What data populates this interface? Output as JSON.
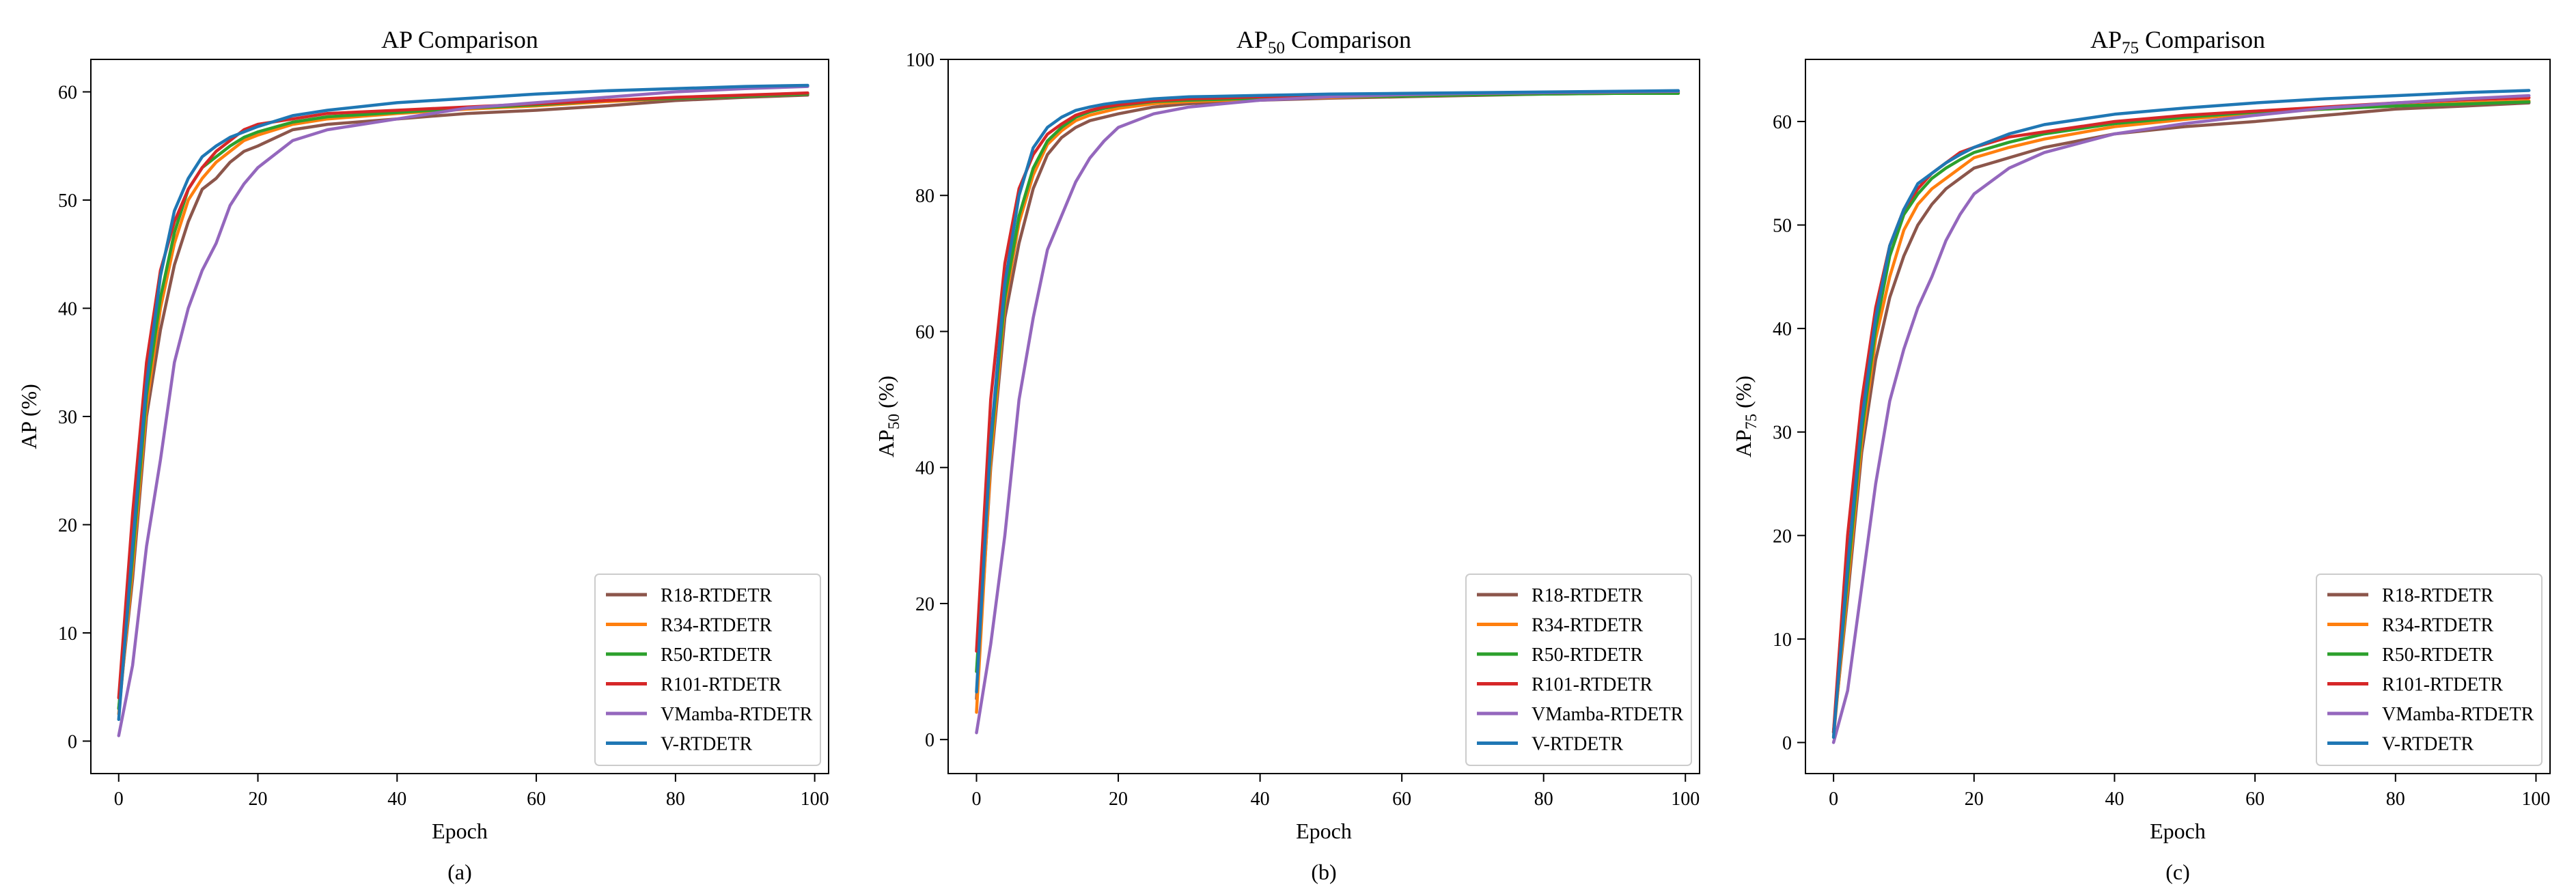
{
  "figure": {
    "panel_labels": [
      "(a)",
      "(b)",
      "(c)"
    ]
  },
  "legend_entries": [
    {
      "name": "R18-RTDETR",
      "color": "#8c564b"
    },
    {
      "name": "R34-RTDETR",
      "color": "#ff7f0e"
    },
    {
      "name": "R50-RTDETR",
      "color": "#2ca02c"
    },
    {
      "name": "R101-RTDETR",
      "color": "#d62728"
    },
    {
      "name": "VMamba-RTDETR",
      "color": "#9467bd"
    },
    {
      "name": "V-RTDETR",
      "color": "#1f77b4"
    }
  ],
  "chart_data": [
    {
      "type": "line",
      "title": "AP Comparison",
      "xlabel": "Epoch",
      "ylabel": "AP (%)",
      "xlim": [
        -4,
        102
      ],
      "ylim": [
        -3,
        63
      ],
      "xticks": [
        0,
        20,
        40,
        60,
        80,
        100
      ],
      "yticks": [
        0,
        10,
        20,
        30,
        40,
        50,
        60
      ],
      "grid": false,
      "legend_position": "lower-right",
      "x": [
        0,
        2,
        4,
        6,
        8,
        10,
        12,
        14,
        16,
        18,
        20,
        25,
        30,
        40,
        50,
        60,
        70,
        80,
        90,
        99
      ],
      "series": [
        {
          "name": "R18-RTDETR",
          "color": "#8c564b",
          "values": [
            3,
            15,
            30,
            38,
            44,
            48,
            51,
            52,
            53.5,
            54.5,
            55,
            56.5,
            57,
            57.5,
            58,
            58.3,
            58.7,
            59.2,
            59.5,
            59.7
          ]
        },
        {
          "name": "R34-RTDETR",
          "color": "#ff7f0e",
          "values": [
            2.5,
            16,
            31,
            40,
            46,
            50,
            52,
            53.5,
            54.5,
            55.5,
            56,
            57,
            57.5,
            58,
            58.4,
            58.7,
            59.1,
            59.4,
            59.6,
            59.8
          ]
        },
        {
          "name": "R50-RTDETR",
          "color": "#2ca02c",
          "values": [
            3,
            17,
            32,
            41,
            47,
            51,
            53,
            54,
            55,
            55.8,
            56.3,
            57.2,
            57.7,
            58.1,
            58.5,
            58.8,
            59.2,
            59.4,
            59.6,
            59.8
          ]
        },
        {
          "name": "R101-RTDETR",
          "color": "#d62728",
          "values": [
            4,
            21,
            35,
            43.5,
            48,
            51,
            53,
            54.5,
            55.5,
            56.5,
            57,
            57.5,
            58,
            58.3,
            58.6,
            58.9,
            59.2,
            59.5,
            59.7,
            59.9
          ]
        },
        {
          "name": "VMamba-RTDETR",
          "color": "#9467bd",
          "values": [
            0.5,
            7,
            18,
            26,
            35,
            40,
            43.5,
            46,
            49.5,
            51.5,
            53,
            55.5,
            56.5,
            57.5,
            58.5,
            59,
            59.5,
            60,
            60.3,
            60.5
          ]
        },
        {
          "name": "V-RTDETR",
          "color": "#1f77b4",
          "values": [
            2,
            18,
            33,
            43,
            49,
            52,
            54,
            55,
            55.8,
            56.3,
            56.8,
            57.8,
            58.3,
            59,
            59.4,
            59.8,
            60.1,
            60.3,
            60.5,
            60.6
          ]
        }
      ]
    },
    {
      "type": "line",
      "title": "AP50 Comparison",
      "title_parts": {
        "main": "AP",
        "sub": "50",
        "rest": " Comparison"
      },
      "xlabel": "Epoch",
      "ylabel": "AP50 (%)",
      "ylabel_parts": {
        "main": "AP",
        "sub": "50",
        "rest": " (%)"
      },
      "xlim": [
        -4,
        102
      ],
      "ylim": [
        -5,
        100
      ],
      "xticks": [
        0,
        20,
        40,
        60,
        80,
        100
      ],
      "yticks": [
        0,
        20,
        40,
        60,
        80,
        100
      ],
      "grid": false,
      "legend_position": "lower-right",
      "x": [
        0,
        2,
        4,
        6,
        8,
        10,
        12,
        14,
        16,
        18,
        20,
        25,
        30,
        40,
        50,
        60,
        70,
        80,
        90,
        99
      ],
      "series": [
        {
          "name": "R18-RTDETR",
          "color": "#8c564b",
          "values": [
            6,
            40,
            62,
            73,
            81,
            86,
            88.5,
            90,
            91,
            91.5,
            92,
            93,
            93.5,
            94,
            94.3,
            94.5,
            94.7,
            94.9,
            95,
            95.1
          ]
        },
        {
          "name": "R34-RTDETR",
          "color": "#ff7f0e",
          "values": [
            4,
            41,
            64,
            76,
            83,
            87.5,
            89.5,
            91,
            91.8,
            92.3,
            92.8,
            93.5,
            93.8,
            94.2,
            94.4,
            94.6,
            94.8,
            95,
            95.1,
            95.2
          ]
        },
        {
          "name": "R50-RTDETR",
          "color": "#2ca02c",
          "values": [
            10,
            43,
            65,
            77,
            84,
            88,
            90,
            91.5,
            92.3,
            92.8,
            93.2,
            93.8,
            94,
            94.3,
            94.5,
            94.6,
            94.8,
            94.9,
            95,
            95
          ]
        },
        {
          "name": "R101-RTDETR",
          "color": "#d62728",
          "values": [
            13,
            50,
            70,
            81,
            86,
            89,
            90.5,
            91.8,
            92.5,
            93,
            93.3,
            93.9,
            94.2,
            94.5,
            94.7,
            94.9,
            95,
            95.1,
            95.2,
            95.3
          ]
        },
        {
          "name": "VMamba-RTDETR",
          "color": "#9467bd",
          "values": [
            1,
            14,
            30,
            50,
            62,
            72,
            77,
            82,
            85.5,
            88,
            90,
            92,
            93,
            94,
            94.5,
            94.8,
            95,
            95.1,
            95.2,
            95.3
          ]
        },
        {
          "name": "V-RTDETR",
          "color": "#1f77b4",
          "values": [
            7,
            44,
            67,
            80,
            87,
            90,
            91.5,
            92.5,
            93,
            93.4,
            93.7,
            94.2,
            94.5,
            94.7,
            94.9,
            95,
            95.1,
            95.2,
            95.3,
            95.4
          ]
        }
      ]
    },
    {
      "type": "line",
      "title": "AP75 Comparison",
      "title_parts": {
        "main": "AP",
        "sub": "75",
        "rest": " Comparison"
      },
      "xlabel": "Epoch",
      "ylabel": "AP75 (%)",
      "ylabel_parts": {
        "main": "AP",
        "sub": "75",
        "rest": " (%)"
      },
      "xlim": [
        -4,
        102
      ],
      "ylim": [
        -3,
        66
      ],
      "xticks": [
        0,
        20,
        40,
        60,
        80,
        100
      ],
      "yticks": [
        0,
        10,
        20,
        30,
        40,
        50,
        60
      ],
      "grid": false,
      "legend_position": "lower-right",
      "x": [
        0,
        2,
        4,
        6,
        8,
        10,
        12,
        14,
        16,
        18,
        20,
        25,
        30,
        40,
        50,
        60,
        70,
        80,
        90,
        99
      ],
      "series": [
        {
          "name": "R18-RTDETR",
          "color": "#8c564b",
          "values": [
            1,
            14,
            28,
            37,
            43,
            47,
            50,
            52,
            53.5,
            54.5,
            55.5,
            56.5,
            57.5,
            58.8,
            59.5,
            60,
            60.6,
            61.2,
            61.5,
            61.8
          ]
        },
        {
          "name": "R34-RTDETR",
          "color": "#ff7f0e",
          "values": [
            0.5,
            15,
            29,
            39,
            45,
            49.5,
            52,
            53.5,
            54.5,
            55.5,
            56.5,
            57.5,
            58.3,
            59.5,
            60.2,
            60.8,
            61.2,
            61.5,
            61.8,
            62
          ]
        },
        {
          "name": "R50-RTDETR",
          "color": "#2ca02c",
          "values": [
            1,
            16,
            30,
            40,
            47,
            51,
            53,
            54.5,
            55.5,
            56.3,
            57,
            58,
            58.8,
            59.8,
            60.4,
            60.9,
            61.2,
            61.5,
            61.7,
            61.9
          ]
        },
        {
          "name": "R101-RTDETR",
          "color": "#d62728",
          "values": [
            1,
            20,
            33,
            42,
            48,
            51.5,
            53.5,
            55,
            56,
            57,
            57.5,
            58.5,
            59,
            60,
            60.6,
            61,
            61.4,
            61.8,
            62.1,
            62.3
          ]
        },
        {
          "name": "VMamba-RTDETR",
          "color": "#9467bd",
          "values": [
            0,
            5,
            15,
            25,
            33,
            38,
            42,
            45,
            48.5,
            51,
            53,
            55.5,
            57,
            58.8,
            59.8,
            60.6,
            61.3,
            61.8,
            62.2,
            62.5
          ]
        },
        {
          "name": "V-RTDETR",
          "color": "#1f77b4",
          "values": [
            0.5,
            17,
            31,
            41,
            48,
            51.5,
            54,
            55,
            56,
            56.8,
            57.5,
            58.8,
            59.7,
            60.7,
            61.3,
            61.8,
            62.2,
            62.5,
            62.8,
            63
          ]
        }
      ]
    }
  ]
}
